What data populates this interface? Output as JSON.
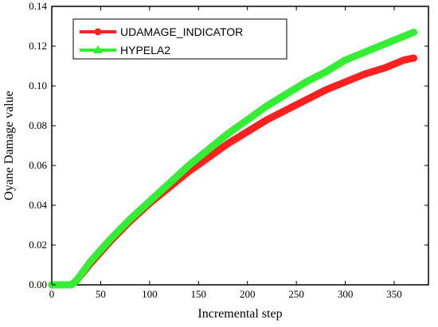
{
  "chart_data": {
    "type": "line",
    "xlabel": "Incremental step",
    "ylabel": "Oyane Damage value",
    "xlim": [
      0,
      385
    ],
    "ylim": [
      0,
      0.14
    ],
    "x_ticks": [
      0,
      50,
      100,
      150,
      200,
      250,
      300,
      350
    ],
    "y_ticks": [
      0.0,
      0.02,
      0.04,
      0.06,
      0.08,
      0.1,
      0.12,
      0.14
    ],
    "x_tick_labels": [
      "0",
      "50",
      "100",
      "150",
      "200",
      "250",
      "300",
      "350"
    ],
    "y_tick_labels": [
      "0.00",
      "0.02",
      "0.04",
      "0.06",
      "0.08",
      "0.10",
      "0.12",
      "0.14"
    ],
    "legend_position": "top-left",
    "grid": false,
    "series": [
      {
        "name": "UDAMAGE_INDICATOR",
        "color": "#ff2020",
        "marker": "circle",
        "x": [
          0,
          20,
          25,
          40,
          60,
          80,
          100,
          120,
          140,
          160,
          180,
          200,
          220,
          240,
          260,
          280,
          300,
          320,
          340,
          360,
          370
        ],
        "y": [
          0,
          0,
          0.002,
          0.011,
          0.022,
          0.032,
          0.041,
          0.049,
          0.057,
          0.064,
          0.071,
          0.077,
          0.083,
          0.088,
          0.093,
          0.098,
          0.102,
          0.106,
          0.109,
          0.113,
          0.114
        ]
      },
      {
        "name": "HYPELA2",
        "color": "#33ee33",
        "marker": "triangle",
        "x": [
          0,
          20,
          25,
          40,
          60,
          80,
          100,
          120,
          140,
          160,
          180,
          200,
          220,
          240,
          260,
          280,
          300,
          320,
          340,
          360,
          370
        ],
        "y": [
          0,
          0,
          0.002,
          0.012,
          0.023,
          0.033,
          0.042,
          0.051,
          0.06,
          0.068,
          0.076,
          0.083,
          0.09,
          0.096,
          0.102,
          0.107,
          0.113,
          0.117,
          0.121,
          0.125,
          0.127
        ]
      }
    ]
  }
}
